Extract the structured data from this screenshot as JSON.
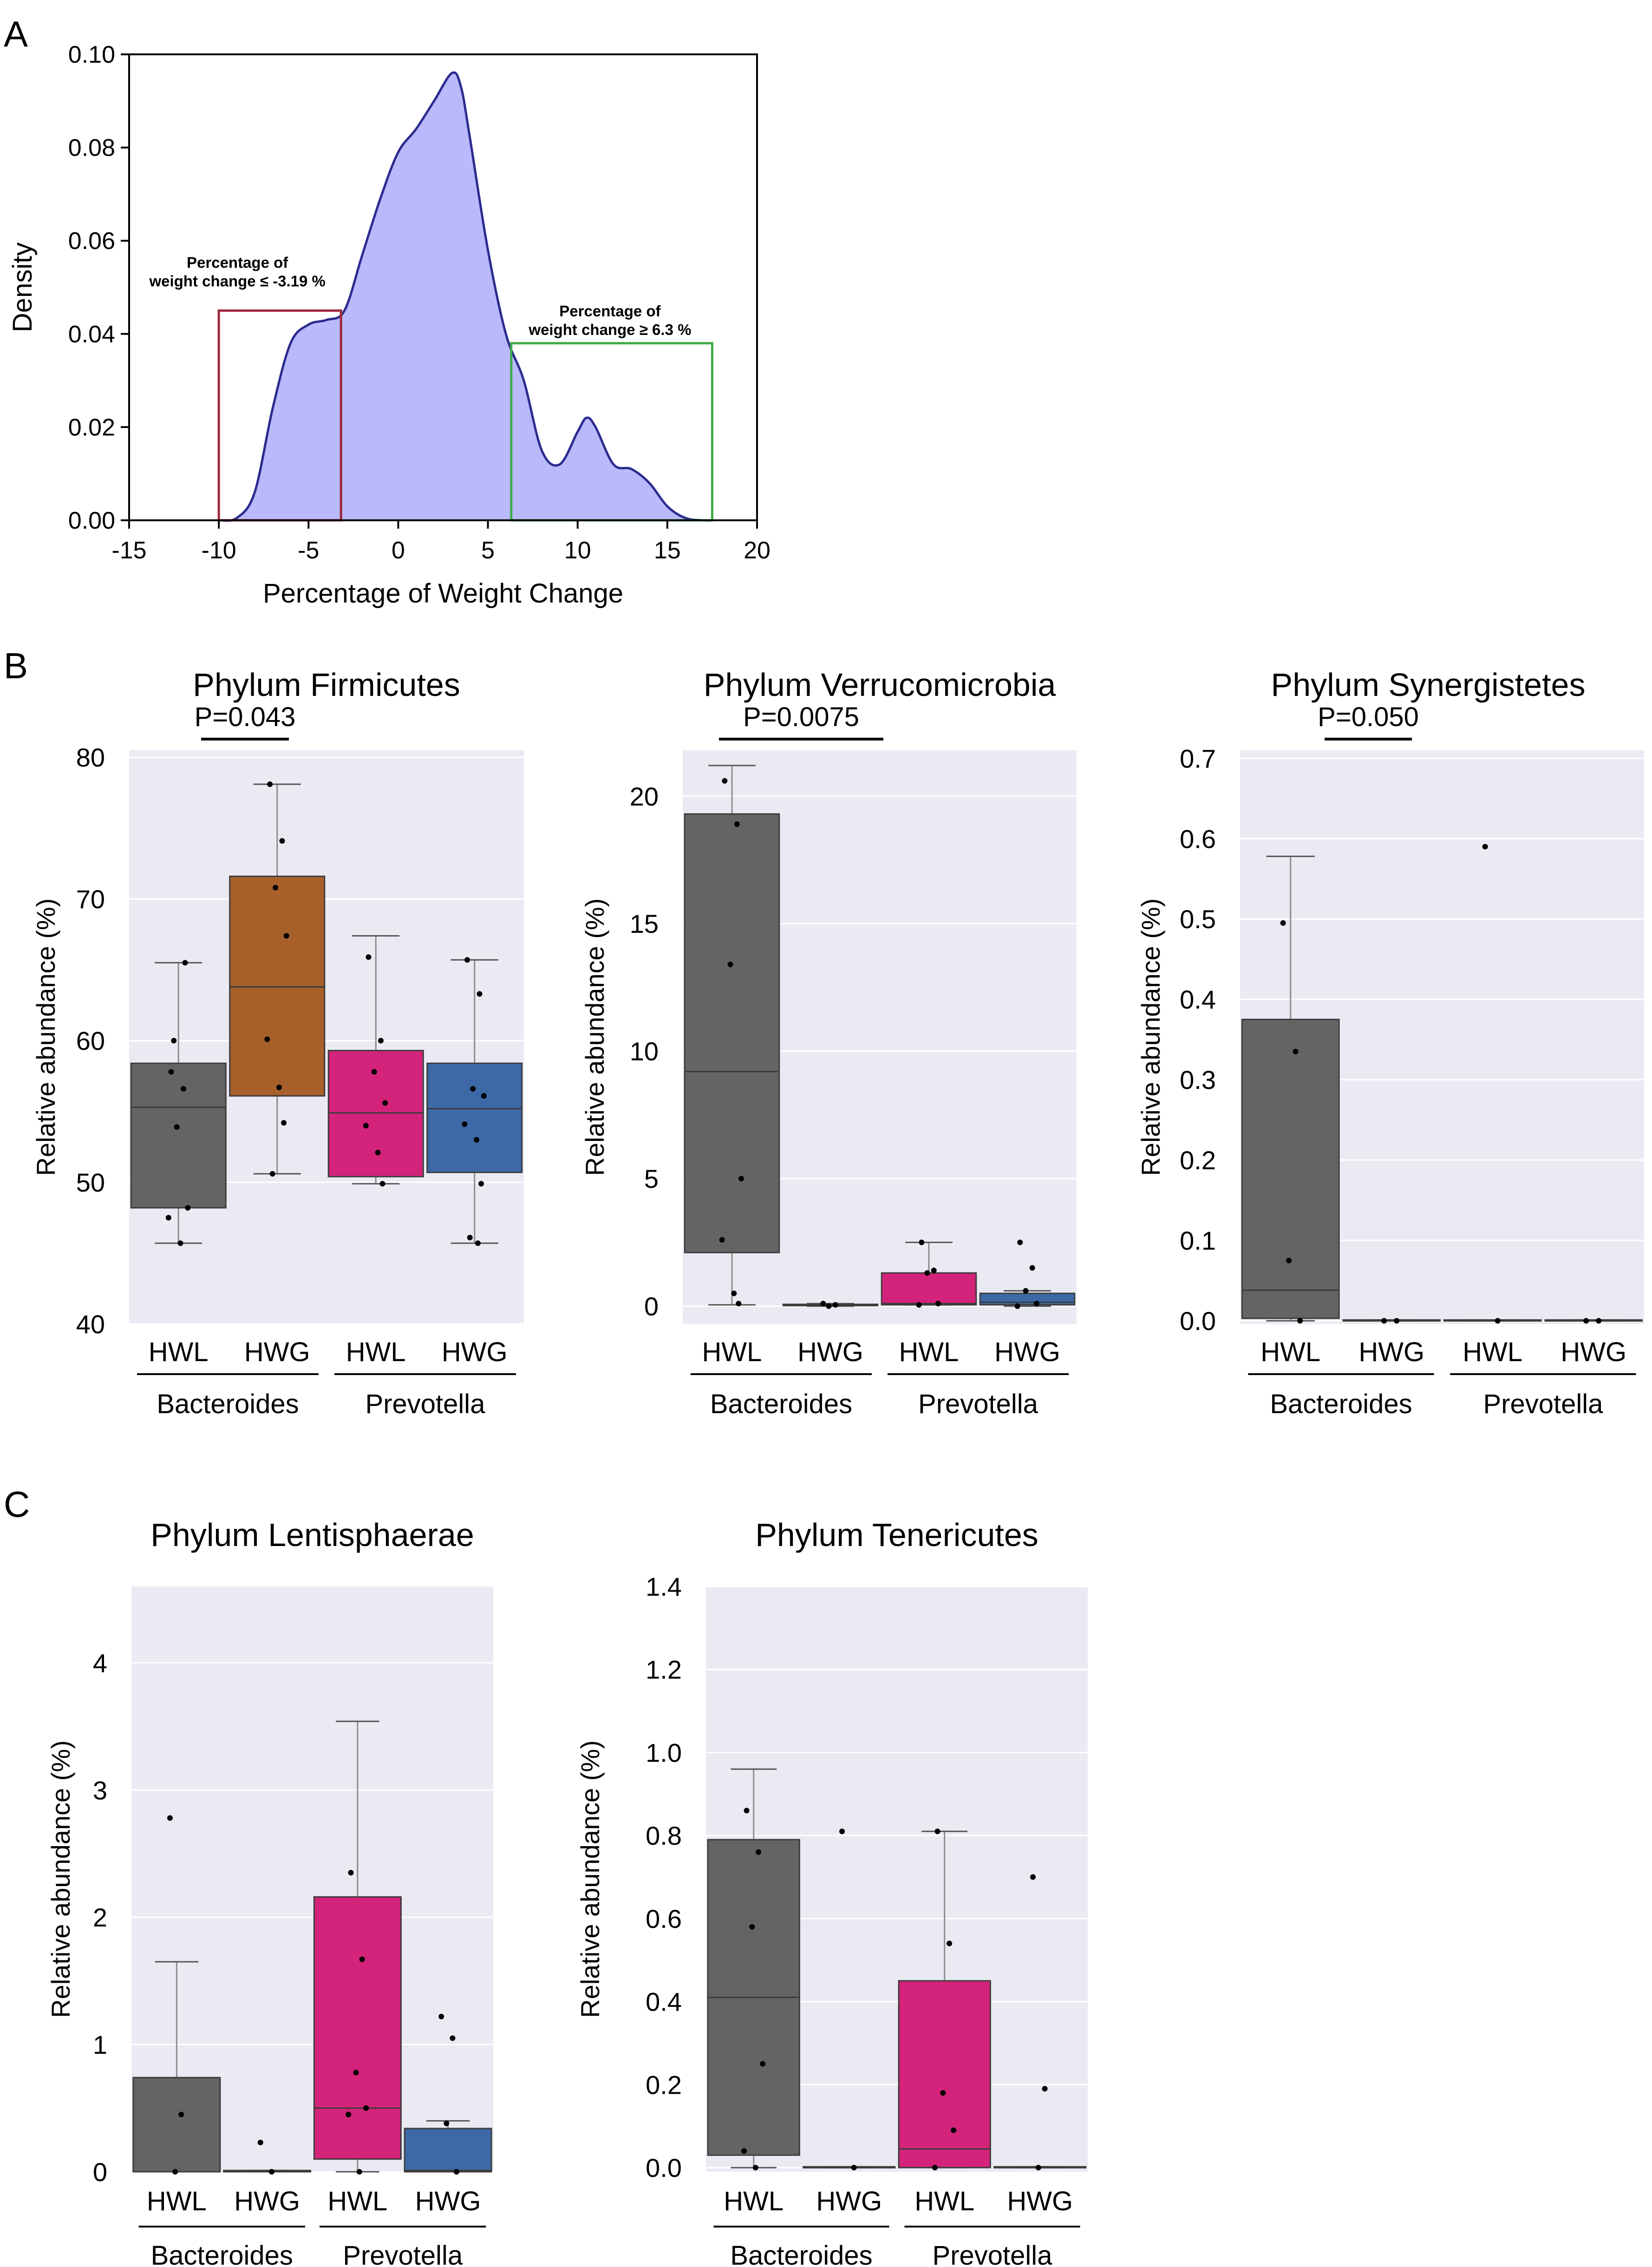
{
  "colors": {
    "density_fill": "#b9b9fb",
    "density_line": "#2b2b8f",
    "red_box": "#a0263a",
    "green_box": "#3faa4a",
    "plot_bg": "#eaeaf3",
    "gray": "#646464",
    "orange": "#a8602b",
    "pink": "#d4237a",
    "blue": "#3d69a6"
  },
  "panels": {
    "A": {
      "label": "A"
    },
    "B": {
      "label": "B"
    },
    "C": {
      "label": "C"
    }
  },
  "chart_data": [
    {
      "id": "A",
      "type": "area",
      "title": "",
      "xlabel": "Percentage of Weight Change",
      "ylabel": "Density",
      "xlim": [
        -15,
        20
      ],
      "ylim": [
        0,
        0.1
      ],
      "xticks": [
        -15,
        -10,
        -5,
        0,
        5,
        10,
        15,
        20
      ],
      "xtick_labels": [
        "-15",
        "-10",
        "-5",
        "0",
        "5",
        "10",
        "15",
        "20"
      ],
      "yticks": [
        0,
        0.02,
        0.04,
        0.06,
        0.08,
        0.1
      ],
      "ytick_labels": [
        "0.00",
        "0.02",
        "0.04",
        "0.06",
        "0.08",
        "0.10"
      ],
      "x": [
        -10,
        -9,
        -8,
        -7,
        -6,
        -5,
        -4,
        -3,
        -2,
        -1,
        0,
        1,
        2,
        3,
        3.5,
        4,
        5,
        6,
        7,
        8,
        9,
        10,
        10.5,
        11,
        12,
        13,
        14,
        15,
        16,
        17,
        17.5
      ],
      "y": [
        0.0,
        0.0005,
        0.006,
        0.024,
        0.038,
        0.042,
        0.043,
        0.045,
        0.057,
        0.069,
        0.079,
        0.084,
        0.09,
        0.096,
        0.093,
        0.082,
        0.058,
        0.04,
        0.03,
        0.015,
        0.012,
        0.019,
        0.022,
        0.02,
        0.012,
        0.011,
        0.008,
        0.003,
        0.0005,
        0.0,
        0.0
      ],
      "annotations": [
        {
          "text": "Percentage of",
          "text2": "weight change ≤ -3.19 %",
          "range": [
            -10,
            -3.19
          ],
          "height": 0.045
        },
        {
          "text": "Percentage of",
          "text2": "weight change ≥ 6.3 %",
          "range": [
            6.3,
            17.5
          ],
          "height": 0.038
        }
      ]
    },
    {
      "id": "B1",
      "type": "box",
      "title": "Phylum Firmicutes",
      "pvalue": "P=0.043",
      "ylabel": "Relative abundance (%)",
      "ylim": [
        40,
        80.5
      ],
      "yticks": [
        40,
        50,
        60,
        70,
        80
      ],
      "categories": [
        "HWL",
        "HWG",
        "HWL",
        "HWG"
      ],
      "groups": [
        "Bacteroides",
        "Prevotella"
      ],
      "boxes": [
        {
          "category": "HWL",
          "group": "Bacteroides",
          "color": "gray",
          "whisker_low": 45.7,
          "q1": 48.2,
          "median": 55.3,
          "q3": 58.4,
          "whisker_high": 65.5,
          "points": [
            57.8,
            56.6,
            53.9,
            48.2,
            47.5,
            45.7,
            65.5,
            60.0
          ]
        },
        {
          "category": "HWG",
          "group": "Bacteroides",
          "color": "orange",
          "whisker_low": 50.6,
          "q1": 56.1,
          "median": 63.8,
          "q3": 71.6,
          "whisker_high": 78.1,
          "points": [
            78.1,
            74.1,
            70.8,
            67.4,
            60.1,
            56.7,
            54.2,
            50.6
          ]
        },
        {
          "category": "HWL",
          "group": "Prevotella",
          "color": "pink",
          "whisker_low": 49.9,
          "q1": 50.4,
          "median": 54.9,
          "q3": 59.3,
          "whisker_high": 67.4,
          "points": [
            65.9,
            60.0,
            57.8,
            55.6,
            54.0,
            52.1,
            49.9
          ]
        },
        {
          "category": "HWG",
          "group": "Prevotella",
          "color": "blue",
          "whisker_low": 45.7,
          "q1": 50.7,
          "median": 55.2,
          "q3": 58.4,
          "whisker_high": 65.7,
          "points": [
            65.7,
            63.3,
            56.6,
            56.1,
            54.1,
            53.0,
            49.9,
            46.1,
            45.7
          ]
        }
      ]
    },
    {
      "id": "B2",
      "type": "box",
      "title": "Phylum Verrucomicrobia",
      "pvalue": "P=0.0075",
      "ylabel": "Relative abundance (%)",
      "ylim": [
        -0.7,
        21.8
      ],
      "yticks": [
        0,
        5,
        10,
        15,
        20
      ],
      "categories": [
        "HWL",
        "HWG",
        "HWL",
        "HWG"
      ],
      "groups": [
        "Bacteroides",
        "Prevotella"
      ],
      "boxes": [
        {
          "category": "HWL",
          "group": "Bacteroides",
          "color": "gray",
          "whisker_low": 0.05,
          "q1": 2.1,
          "median": 9.2,
          "q3": 19.3,
          "whisker_high": 21.2,
          "points": [
            20.6,
            18.9,
            13.4,
            5.0,
            2.6,
            0.5,
            0.1
          ]
        },
        {
          "category": "HWG",
          "group": "Bacteroides",
          "color": "gray",
          "whisker_low": 0.0,
          "q1": 0.02,
          "median": 0.04,
          "q3": 0.07,
          "whisker_high": 0.1,
          "points": [
            0.1,
            0.05,
            0.0
          ]
        },
        {
          "category": "HWL",
          "group": "Prevotella",
          "color": "pink",
          "whisker_low": 0.05,
          "q1": 0.05,
          "median": 0.1,
          "q3": 1.3,
          "whisker_high": 2.5,
          "points": [
            2.5,
            1.4,
            1.3,
            0.1,
            0.05
          ]
        },
        {
          "category": "HWG",
          "group": "Prevotella",
          "color": "blue",
          "whisker_low": 0.0,
          "q1": 0.05,
          "median": 0.15,
          "q3": 0.5,
          "whisker_high": 0.6,
          "points": [
            2.5,
            1.5,
            0.6,
            0.1,
            0.0
          ]
        }
      ]
    },
    {
      "id": "B3",
      "type": "box",
      "title": "Phylum Synergistetes",
      "pvalue": "P=0.050",
      "ylabel": "Relative abundance (%)",
      "ylim": [
        -0.004,
        0.71
      ],
      "yticks": [
        0,
        0.1,
        0.2,
        0.3,
        0.4,
        0.5,
        0.6,
        0.7
      ],
      "ytick_labels": [
        "0.0",
        "0.1",
        "0.2",
        "0.3",
        "0.4",
        "0.5",
        "0.6",
        "0.7"
      ],
      "categories": [
        "HWL",
        "HWG",
        "HWL",
        "HWG"
      ],
      "groups": [
        "Bacteroides",
        "Prevotella"
      ],
      "boxes": [
        {
          "category": "HWL",
          "group": "Bacteroides",
          "color": "gray",
          "whisker_low": 0.0,
          "q1": 0.003,
          "median": 0.038,
          "q3": 0.375,
          "whisker_high": 0.578,
          "points": [
            0.495,
            0.335,
            0.075,
            0.0
          ]
        },
        {
          "category": "HWG",
          "group": "Bacteroides",
          "color": "gray",
          "whisker_low": 0.0,
          "q1": 0.0,
          "median": 0.0,
          "q3": 0.001,
          "whisker_high": 0.001,
          "points": [
            0.0,
            0.0
          ]
        },
        {
          "category": "HWL",
          "group": "Prevotella",
          "color": "pink",
          "whisker_low": 0.0,
          "q1": 0.0,
          "median": 0.0,
          "q3": 0.001,
          "whisker_high": 0.001,
          "points": [
            0.59,
            0.0
          ]
        },
        {
          "category": "HWG",
          "group": "Prevotella",
          "color": "blue",
          "whisker_low": 0.0,
          "q1": 0.0,
          "median": 0.0,
          "q3": 0.001,
          "whisker_high": 0.001,
          "points": [
            0.0,
            0.0
          ]
        }
      ]
    },
    {
      "id": "C1",
      "type": "box",
      "title": "Phylum Lentisphaerae",
      "pvalue": "",
      "ylabel": "Relative abundance (%)",
      "ylim": [
        0,
        4.6
      ],
      "yticks": [
        0,
        1,
        2,
        3,
        4
      ],
      "categories": [
        "HWL",
        "HWG",
        "HWL",
        "HWG"
      ],
      "groups": [
        "Bacteroides",
        "Prevotella"
      ],
      "boxes": [
        {
          "category": "HWL",
          "group": "Bacteroides",
          "color": "gray",
          "whisker_low": 0.0,
          "q1": 0.0,
          "median": 0.0,
          "q3": 0.74,
          "whisker_high": 1.65,
          "points": [
            2.78,
            0.45,
            0.0
          ]
        },
        {
          "category": "HWG",
          "group": "Bacteroides",
          "color": "gray",
          "whisker_low": 0.0,
          "q1": 0.0,
          "median": 0.0,
          "q3": 0.01,
          "whisker_high": 0.01,
          "points": [
            0.23,
            0.0
          ]
        },
        {
          "category": "HWL",
          "group": "Prevotella",
          "color": "pink",
          "whisker_low": 0.0,
          "q1": 0.1,
          "median": 0.5,
          "q3": 2.16,
          "whisker_high": 3.54,
          "points": [
            2.35,
            1.67,
            0.78,
            0.5,
            0.45,
            0.0
          ]
        },
        {
          "category": "HWG",
          "group": "Prevotella",
          "color": "blue",
          "whisker_low": 0.0,
          "q1": 0.0,
          "median": 0.01,
          "q3": 0.34,
          "whisker_high": 0.4,
          "points": [
            1.22,
            1.05,
            0.38,
            0.0
          ]
        }
      ]
    },
    {
      "id": "C2",
      "type": "box",
      "title": "Phylum Tenericutes",
      "pvalue": "",
      "ylabel": "Relative abundance (%)",
      "ylim": [
        -0.01,
        1.4
      ],
      "yticks": [
        0,
        0.2,
        0.4,
        0.6,
        0.8,
        1.0,
        1.2,
        1.4
      ],
      "ytick_labels": [
        "0.0",
        "0.2",
        "0.4",
        "0.6",
        "0.8",
        "1.0",
        "1.2",
        "1.4"
      ],
      "categories": [
        "HWL",
        "HWG",
        "HWL",
        "HWG"
      ],
      "groups": [
        "Bacteroides",
        "Prevotella"
      ],
      "boxes": [
        {
          "category": "HWL",
          "group": "Bacteroides",
          "color": "gray",
          "whisker_low": 0.0,
          "q1": 0.03,
          "median": 0.41,
          "q3": 0.79,
          "whisker_high": 0.96,
          "points": [
            0.86,
            0.76,
            0.58,
            0.25,
            0.04,
            0.0
          ]
        },
        {
          "category": "HWG",
          "group": "Bacteroides",
          "color": "gray",
          "whisker_low": 0.0,
          "q1": 0.0,
          "median": 0.0,
          "q3": 0.002,
          "whisker_high": 0.002,
          "points": [
            0.81,
            0.0
          ]
        },
        {
          "category": "HWL",
          "group": "Prevotella",
          "color": "pink",
          "whisker_low": 0.0,
          "q1": 0.0,
          "median": 0.045,
          "q3": 0.45,
          "whisker_high": 0.81,
          "points": [
            0.81,
            0.54,
            0.18,
            0.09,
            0.0
          ]
        },
        {
          "category": "HWG",
          "group": "Prevotella",
          "color": "blue",
          "whisker_low": 0.0,
          "q1": 0.0,
          "median": 0.0,
          "q3": 0.002,
          "whisker_high": 0.002,
          "points": [
            0.7,
            0.19,
            0.0
          ]
        }
      ]
    }
  ]
}
